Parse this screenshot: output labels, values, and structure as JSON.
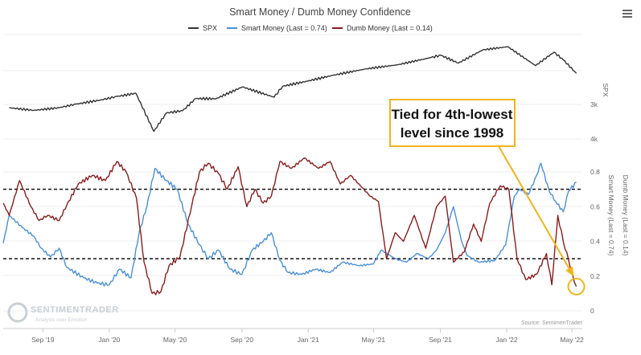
{
  "chart_data": {
    "type": "line",
    "title": "Smart Money / Dumb Money Confidence",
    "x_ticks": [
      "Sep '19",
      "Jan '20",
      "May '20",
      "Sep '20",
      "Jan '21",
      "May '21",
      "Sep '21",
      "Jan '22",
      "May '22"
    ],
    "spx_axis": {
      "title": "SPX",
      "ticks": [
        "3k",
        "4k"
      ]
    },
    "confidence_axis": {
      "ticks": [
        "0",
        "0.2",
        "0.4",
        "0.6",
        "0.8"
      ],
      "ylim": [
        0,
        0.8
      ]
    },
    "right_axis_titles": [
      "Smart Money (Last = 0.74)",
      "Dumb Money (Last = 0.14)"
    ],
    "reference_lines": [
      0.7,
      0.3
    ],
    "series": [
      {
        "name": "SPX",
        "color": "#333333",
        "points": [
          [
            "2019-07-01",
            2950
          ],
          [
            "2019-08-15",
            2870
          ],
          [
            "2019-10-01",
            2950
          ],
          [
            "2019-11-01",
            3060
          ],
          [
            "2019-12-15",
            3180
          ],
          [
            "2020-01-15",
            3290
          ],
          [
            "2020-02-19",
            3386
          ],
          [
            "2020-03-23",
            2237
          ],
          [
            "2020-04-15",
            2790
          ],
          [
            "2020-05-15",
            2860
          ],
          [
            "2020-06-08",
            3230
          ],
          [
            "2020-07-15",
            3220
          ],
          [
            "2020-09-02",
            3580
          ],
          [
            "2020-10-30",
            3270
          ],
          [
            "2020-11-15",
            3600
          ],
          [
            "2020-12-31",
            3756
          ],
          [
            "2021-02-15",
            3930
          ],
          [
            "2021-04-15",
            4120
          ],
          [
            "2021-06-15",
            4250
          ],
          [
            "2021-08-15",
            4470
          ],
          [
            "2021-09-02",
            4537
          ],
          [
            "2021-10-04",
            4300
          ],
          [
            "2021-11-18",
            4700
          ],
          [
            "2022-01-03",
            4796
          ],
          [
            "2022-02-23",
            4225
          ],
          [
            "2022-03-29",
            4630
          ],
          [
            "2022-04-15",
            4400
          ],
          [
            "2022-05-09",
            3991
          ]
        ]
      },
      {
        "name": "Smart Money (Last = 0.74)",
        "color": "#4a90d9",
        "points": [
          [
            "2019-06-20",
            0.39
          ],
          [
            "2019-07-01",
            0.55
          ],
          [
            "2019-07-25",
            0.48
          ],
          [
            "2019-08-15",
            0.43
          ],
          [
            "2019-08-29",
            0.36
          ],
          [
            "2019-09-15",
            0.31
          ],
          [
            "2019-10-01",
            0.36
          ],
          [
            "2019-10-15",
            0.25
          ],
          [
            "2019-11-15",
            0.19
          ],
          [
            "2019-12-10",
            0.16
          ],
          [
            "2020-01-01",
            0.15
          ],
          [
            "2020-01-20",
            0.24
          ],
          [
            "2020-02-10",
            0.19
          ],
          [
            "2020-02-25",
            0.45
          ],
          [
            "2020-03-10",
            0.6
          ],
          [
            "2020-03-25",
            0.82
          ],
          [
            "2020-04-15",
            0.75
          ],
          [
            "2020-05-05",
            0.7
          ],
          [
            "2020-05-25",
            0.5
          ],
          [
            "2020-06-15",
            0.38
          ],
          [
            "2020-07-01",
            0.3
          ],
          [
            "2020-07-20",
            0.35
          ],
          [
            "2020-08-10",
            0.24
          ],
          [
            "2020-09-01",
            0.21
          ],
          [
            "2020-09-20",
            0.35
          ],
          [
            "2020-10-10",
            0.4
          ],
          [
            "2020-10-25",
            0.45
          ],
          [
            "2020-11-10",
            0.29
          ],
          [
            "2020-11-25",
            0.22
          ],
          [
            "2020-12-20",
            0.21
          ],
          [
            "2021-01-15",
            0.24
          ],
          [
            "2021-02-10",
            0.22
          ],
          [
            "2021-03-05",
            0.28
          ],
          [
            "2021-04-05",
            0.26
          ],
          [
            "2021-05-01",
            0.27
          ],
          [
            "2021-05-15",
            0.35
          ],
          [
            "2021-06-10",
            0.3
          ],
          [
            "2021-07-01",
            0.28
          ],
          [
            "2021-07-20",
            0.33
          ],
          [
            "2021-08-10",
            0.3
          ],
          [
            "2021-08-25",
            0.35
          ],
          [
            "2021-09-10",
            0.45
          ],
          [
            "2021-09-25",
            0.6
          ],
          [
            "2021-10-10",
            0.4
          ],
          [
            "2021-10-20",
            0.32
          ],
          [
            "2021-11-10",
            0.28
          ],
          [
            "2021-12-10",
            0.29
          ],
          [
            "2021-12-30",
            0.38
          ],
          [
            "2022-01-15",
            0.66
          ],
          [
            "2022-01-25",
            0.7
          ],
          [
            "2022-02-10",
            0.67
          ],
          [
            "2022-02-25",
            0.78
          ],
          [
            "2022-03-05",
            0.85
          ],
          [
            "2022-03-20",
            0.69
          ],
          [
            "2022-04-01",
            0.63
          ],
          [
            "2022-04-15",
            0.57
          ],
          [
            "2022-04-25",
            0.69
          ],
          [
            "2022-05-09",
            0.74
          ]
        ]
      },
      {
        "name": "Dumb Money (Last = 0.14)",
        "color": "#8b1c1c",
        "points": [
          [
            "2019-06-20",
            0.62
          ],
          [
            "2019-07-01",
            0.55
          ],
          [
            "2019-07-20",
            0.75
          ],
          [
            "2019-08-10",
            0.6
          ],
          [
            "2019-08-25",
            0.52
          ],
          [
            "2019-09-10",
            0.55
          ],
          [
            "2019-10-01",
            0.52
          ],
          [
            "2019-10-15",
            0.61
          ],
          [
            "2019-11-05",
            0.73
          ],
          [
            "2019-12-01",
            0.78
          ],
          [
            "2019-12-25",
            0.75
          ],
          [
            "2020-01-15",
            0.86
          ],
          [
            "2020-02-01",
            0.8
          ],
          [
            "2020-02-20",
            0.65
          ],
          [
            "2020-03-05",
            0.28
          ],
          [
            "2020-03-20",
            0.1
          ],
          [
            "2020-04-05",
            0.11
          ],
          [
            "2020-04-20",
            0.26
          ],
          [
            "2020-05-10",
            0.31
          ],
          [
            "2020-06-01",
            0.61
          ],
          [
            "2020-06-15",
            0.8
          ],
          [
            "2020-07-01",
            0.85
          ],
          [
            "2020-07-20",
            0.79
          ],
          [
            "2020-08-05",
            0.7
          ],
          [
            "2020-08-25",
            0.83
          ],
          [
            "2020-09-10",
            0.6
          ],
          [
            "2020-09-25",
            0.7
          ],
          [
            "2020-10-10",
            0.62
          ],
          [
            "2020-10-25",
            0.66
          ],
          [
            "2020-11-10",
            0.86
          ],
          [
            "2020-12-01",
            0.82
          ],
          [
            "2020-12-25",
            0.88
          ],
          [
            "2021-01-20",
            0.82
          ],
          [
            "2021-02-10",
            0.86
          ],
          [
            "2021-03-01",
            0.73
          ],
          [
            "2021-03-20",
            0.78
          ],
          [
            "2021-04-10",
            0.71
          ],
          [
            "2021-04-25",
            0.66
          ],
          [
            "2021-05-10",
            0.63
          ],
          [
            "2021-05-25",
            0.3
          ],
          [
            "2021-06-10",
            0.45
          ],
          [
            "2021-06-25",
            0.4
          ],
          [
            "2021-07-15",
            0.55
          ],
          [
            "2021-08-05",
            0.36
          ],
          [
            "2021-08-25",
            0.6
          ],
          [
            "2021-09-10",
            0.66
          ],
          [
            "2021-09-25",
            0.28
          ],
          [
            "2021-10-15",
            0.34
          ],
          [
            "2021-11-01",
            0.5
          ],
          [
            "2021-11-15",
            0.4
          ],
          [
            "2021-12-01",
            0.62
          ],
          [
            "2021-12-20",
            0.72
          ],
          [
            "2022-01-05",
            0.7
          ],
          [
            "2022-01-20",
            0.3
          ],
          [
            "2022-02-05",
            0.18
          ],
          [
            "2022-02-25",
            0.21
          ],
          [
            "2022-03-15",
            0.33
          ],
          [
            "2022-03-25",
            0.15
          ],
          [
            "2022-04-05",
            0.55
          ],
          [
            "2022-04-15",
            0.4
          ],
          [
            "2022-04-25",
            0.29
          ],
          [
            "2022-05-02",
            0.21
          ],
          [
            "2022-05-09",
            0.14
          ]
        ]
      }
    ],
    "annotation": {
      "lines": [
        "Tied for 4th-lowest",
        "level since 1998"
      ],
      "border_color": "#f0b41c",
      "target": [
        "2022-05-09",
        0.14
      ]
    },
    "credit": "Source: SentimenTrader",
    "watermark": {
      "name": "SENTIMENTRADER",
      "tagline": "Analysis over Emotion"
    }
  }
}
